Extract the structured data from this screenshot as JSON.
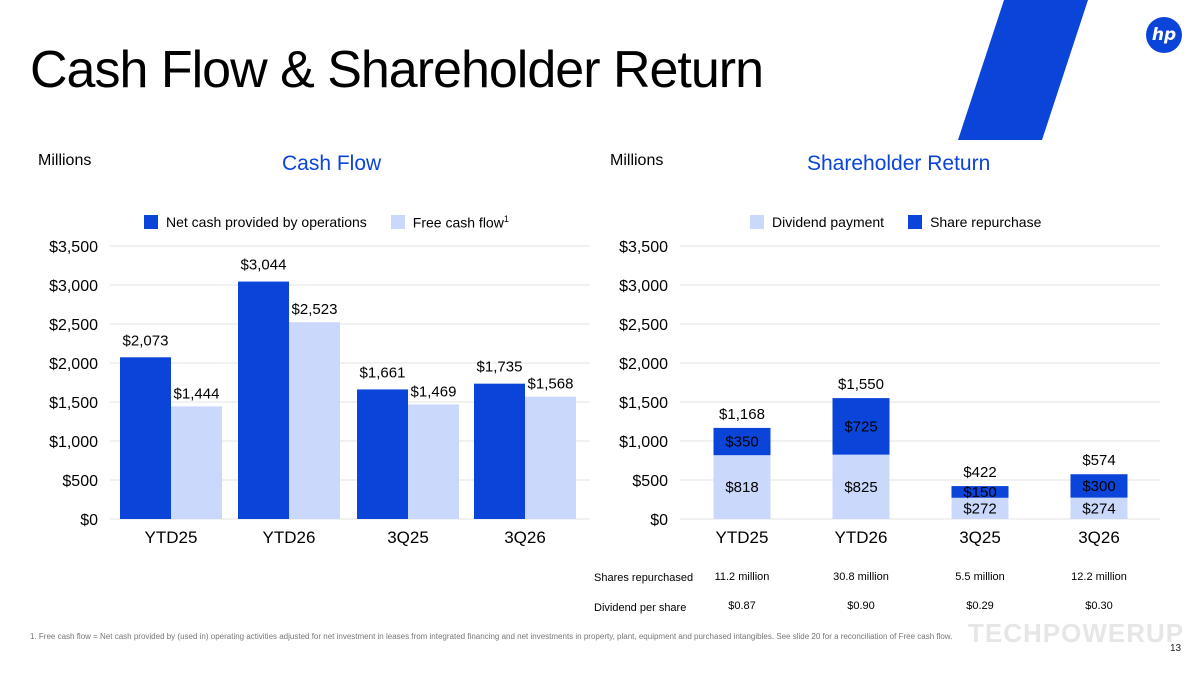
{
  "slide": {
    "title": "Cash Flow & Shareholder Return",
    "page_number": "13",
    "watermark": "TECHPOWERUP",
    "footnote": "1.  Free cash flow = Net cash provided by (used in) operating activities adjusted for net investment in leases from integrated financing and net investments in property, plant, equipment and purchased intangibles. See slide 20 for a reconciliation of Free cash flow.",
    "logo_text": "hp",
    "colors": {
      "brand_blue": "#0a44d8",
      "light_blue": "#c9d8fb",
      "grid": "#e3e3e3"
    }
  },
  "chart_data": [
    {
      "type": "bar",
      "title": "Cash Flow",
      "units_label": "Millions",
      "categories": [
        "YTD25",
        "YTD26",
        "3Q25",
        "3Q26"
      ],
      "series": [
        {
          "name": "Net cash provided by operations",
          "color": "#0a44d8",
          "values": [
            2073,
            3044,
            1661,
            1735
          ],
          "labels": [
            "$2,073",
            "$3,044",
            "$1,661",
            "$1,735"
          ]
        },
        {
          "name": "Free cash flow",
          "name_superscript": "1",
          "color": "#c9d8fb",
          "values": [
            1444,
            2523,
            1469,
            1568
          ],
          "labels": [
            "$1,444",
            "$2,523",
            "$1,469",
            "$1,568"
          ]
        }
      ],
      "ylim": [
        0,
        3500
      ],
      "yticks": [
        0,
        500,
        1000,
        1500,
        2000,
        2500,
        3000,
        3500
      ],
      "ytick_labels": [
        "$0",
        "$500",
        "$1,000",
        "$1,500",
        "$2,000",
        "$2,500",
        "$3,000",
        "$3,500"
      ],
      "grid": true,
      "legend_position": "top"
    },
    {
      "type": "bar",
      "stacked": true,
      "title": "Shareholder Return",
      "units_label": "Millions",
      "categories": [
        "YTD25",
        "YTD26",
        "3Q25",
        "3Q26"
      ],
      "series": [
        {
          "name": "Dividend payment",
          "color": "#c9d8fb",
          "values": [
            818,
            825,
            272,
            274
          ],
          "labels": [
            "$818",
            "$825",
            "$272",
            "$274"
          ]
        },
        {
          "name": "Share repurchase",
          "color": "#0a44d8",
          "values": [
            350,
            725,
            150,
            300
          ],
          "labels": [
            "$350",
            "$725",
            "$150",
            "$300"
          ]
        }
      ],
      "totals": [
        1168,
        1550,
        422,
        574
      ],
      "total_labels": [
        "$1,168",
        "$1,550",
        "$422",
        "$574"
      ],
      "ylim": [
        0,
        3500
      ],
      "yticks": [
        0,
        500,
        1000,
        1500,
        2000,
        2500,
        3000,
        3500
      ],
      "ytick_labels": [
        "$0",
        "$500",
        "$1,000",
        "$1,500",
        "$2,000",
        "$2,500",
        "$3,000",
        "$3,500"
      ],
      "grid": true,
      "legend_position": "top",
      "table": [
        {
          "label": "Shares repurchased",
          "values": [
            "11.2 million",
            "30.8 million",
            "5.5 million",
            "12.2 million"
          ]
        },
        {
          "label": "Dividend per share",
          "values": [
            "$0.87",
            "$0.90",
            "$0.29",
            "$0.30"
          ]
        }
      ]
    }
  ]
}
